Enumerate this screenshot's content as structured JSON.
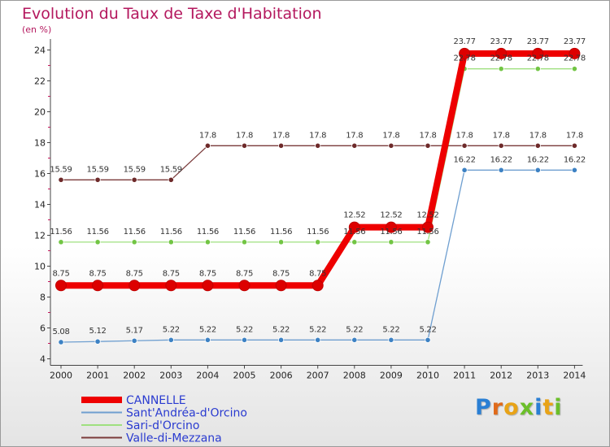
{
  "logo": "Proxiti",
  "chart_data": {
    "type": "line",
    "title": "Evolution du Taux de Taxe d'Habitation",
    "ylabel": "(en %)",
    "xlabel": "",
    "ylim": [
      4,
      24
    ],
    "yticks": [
      4,
      6,
      8,
      10,
      12,
      14,
      16,
      18,
      20,
      22,
      24
    ],
    "grid": false,
    "legend_position": "bottom-left",
    "categories": [
      "2000",
      "2001",
      "2002",
      "2003",
      "2004",
      "2005",
      "2006",
      "2007",
      "2008",
      "2009",
      "2010",
      "2011",
      "2012",
      "2013",
      "2014"
    ],
    "series": [
      {
        "name": "Sant'Andréa-d'Orcino",
        "color": "#6f9fd0",
        "marker_color": "#3d82c4",
        "values": [
          5.08,
          5.12,
          5.17,
          5.22,
          5.22,
          5.22,
          5.22,
          5.22,
          5.22,
          5.22,
          5.22,
          16.22,
          16.22,
          16.22,
          16.22
        ],
        "labels": [
          "5.08",
          "5.12",
          "5.17",
          "5.22",
          "5.22",
          "5.22",
          "5.22",
          "5.22",
          "5.22",
          "5.22",
          "5.22",
          "16.22",
          "16.22",
          "16.22",
          "16.22"
        ]
      },
      {
        "name": "Sari-d'Orcino",
        "color": "#9fe080",
        "marker_color": "#72c544",
        "values": [
          11.56,
          11.56,
          11.56,
          11.56,
          11.56,
          11.56,
          11.56,
          11.56,
          11.56,
          11.56,
          11.56,
          22.78,
          22.78,
          22.78,
          22.78
        ],
        "labels": [
          "11.56",
          "11.56",
          "11.56",
          "11.56",
          "11.56",
          "11.56",
          "11.56",
          "11.56",
          "11.56",
          "11.56",
          "11.56",
          "22.78",
          "22.78",
          "22.78",
          "22.78"
        ]
      },
      {
        "name": "Valle-di-Mezzana",
        "color": "#7a3a3a",
        "marker_color": "#6e2a2a",
        "values": [
          15.59,
          15.59,
          15.59,
          15.59,
          17.8,
          17.8,
          17.8,
          17.8,
          17.8,
          17.8,
          17.8,
          17.8,
          17.8,
          17.8,
          17.8
        ],
        "labels": [
          "15.59",
          "15.59",
          "15.59",
          "15.59",
          "17.8",
          "17.8",
          "17.8",
          "17.8",
          "17.8",
          "17.8",
          "17.8",
          "17.8",
          "17.8",
          "17.8",
          "17.8"
        ]
      },
      {
        "name": "CANNELLE",
        "color": "#ee0000",
        "marker_color": "#dd0000",
        "emphasis": true,
        "values": [
          8.75,
          8.75,
          8.75,
          8.75,
          8.75,
          8.75,
          8.75,
          8.75,
          12.52,
          12.52,
          12.52,
          23.77,
          23.77,
          23.77,
          23.77
        ],
        "labels": [
          "8.75",
          "8.75",
          "8.75",
          "8.75",
          "8.75",
          "8.75",
          "8.75",
          "8.75",
          "12.52",
          "12.52",
          "12.52",
          "23.77",
          "23.77",
          "23.77",
          "23.77"
        ]
      }
    ],
    "legend": [
      "CANNELLE",
      "Sant'Andréa-d'Orcino",
      "Sari-d'Orcino",
      "Valle-di-Mezzana"
    ]
  }
}
